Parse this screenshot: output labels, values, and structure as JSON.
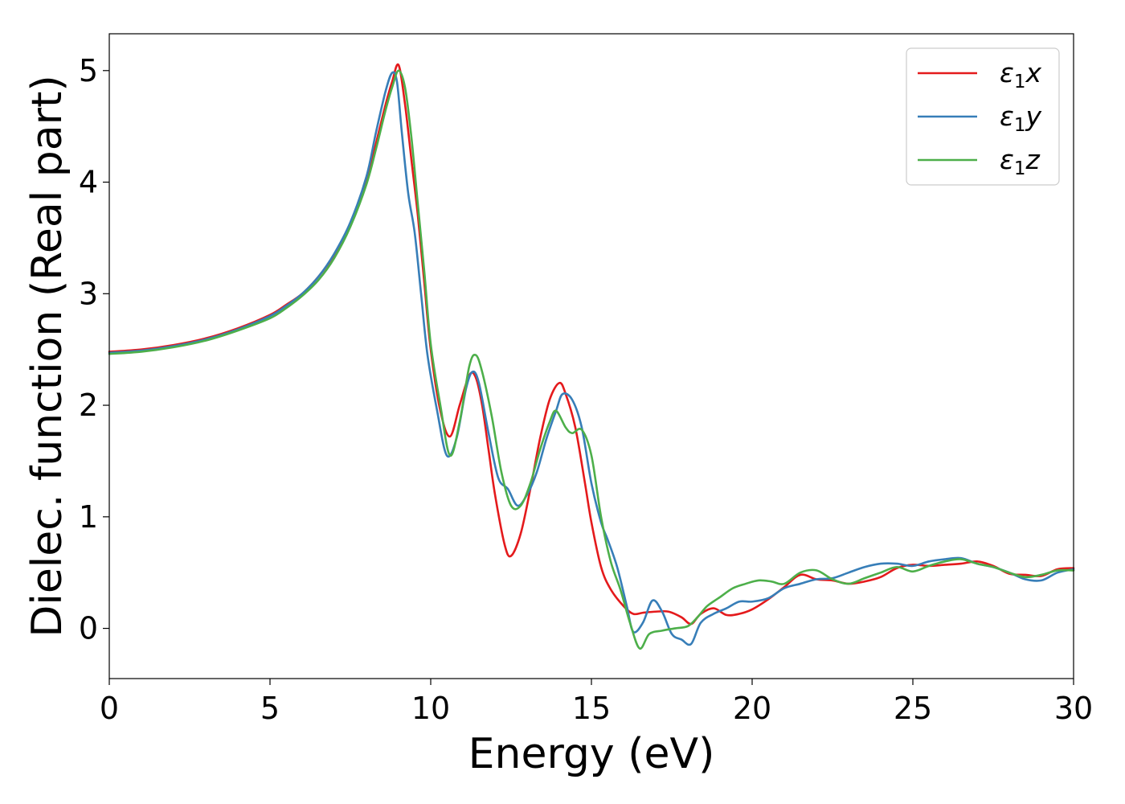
{
  "chart_data": {
    "type": "line",
    "title": "",
    "xlabel": "Energy (eV)",
    "ylabel": "Dielec. function (Real part)",
    "xlim": [
      0,
      30
    ],
    "ylim": [
      -0.45,
      5.33
    ],
    "xticks": [
      0,
      5,
      10,
      15,
      20,
      25,
      30
    ],
    "yticks": [
      0,
      1,
      2,
      3,
      4,
      5
    ],
    "grid": false,
    "legend_position": "top-right",
    "series": [
      {
        "name": "ε1x",
        "label_main": "ε",
        "label_sub": "1",
        "label_var": "x",
        "color": "#e41a1c",
        "x": [
          0,
          1,
          2,
          3,
          4,
          5,
          5.5,
          6,
          6.5,
          7,
          7.5,
          8,
          8.3,
          8.6,
          8.8,
          9.0,
          9.2,
          9.4,
          9.6,
          9.8,
          10.0,
          10.3,
          10.6,
          10.9,
          11.2,
          11.4,
          11.6,
          11.8,
          12.0,
          12.3,
          12.5,
          12.8,
          13.1,
          13.4,
          13.7,
          14.0,
          14.2,
          14.5,
          14.8,
          15.0,
          15.3,
          15.6,
          16.0,
          16.3,
          16.6,
          17.0,
          17.4,
          17.8,
          18.1,
          18.4,
          18.8,
          19.2,
          19.6,
          20.0,
          20.5,
          21.0,
          21.5,
          22.0,
          22.5,
          23.0,
          23.5,
          24.0,
          24.5,
          25.0,
          25.5,
          26.0,
          26.5,
          27.0,
          27.5,
          28.0,
          28.5,
          29.0,
          29.5,
          30.0
        ],
        "values": [
          2.48,
          2.5,
          2.54,
          2.6,
          2.69,
          2.81,
          2.9,
          3.0,
          3.15,
          3.35,
          3.62,
          4.0,
          4.35,
          4.7,
          4.9,
          5.05,
          4.7,
          4.2,
          3.7,
          3.1,
          2.5,
          1.95,
          1.72,
          2.0,
          2.27,
          2.25,
          2.0,
          1.6,
          1.2,
          0.75,
          0.65,
          0.85,
          1.25,
          1.7,
          2.05,
          2.2,
          2.1,
          1.8,
          1.3,
          0.95,
          0.55,
          0.35,
          0.2,
          0.13,
          0.14,
          0.15,
          0.15,
          0.1,
          0.04,
          0.13,
          0.18,
          0.12,
          0.13,
          0.17,
          0.26,
          0.37,
          0.48,
          0.44,
          0.43,
          0.4,
          0.42,
          0.46,
          0.54,
          0.57,
          0.56,
          0.57,
          0.58,
          0.6,
          0.56,
          0.49,
          0.48,
          0.47,
          0.53,
          0.54
        ]
      },
      {
        "name": "ε1y",
        "label_main": "ε",
        "label_sub": "1",
        "label_var": "y",
        "color": "#377eb8",
        "x": [
          0,
          1,
          2,
          3,
          4,
          5,
          5.5,
          6,
          6.5,
          7,
          7.5,
          8,
          8.3,
          8.6,
          8.8,
          8.95,
          9.1,
          9.3,
          9.5,
          9.7,
          9.9,
          10.2,
          10.5,
          10.8,
          11.1,
          11.3,
          11.5,
          11.8,
          12.1,
          12.4,
          12.7,
          13.0,
          13.3,
          13.6,
          13.9,
          14.1,
          14.4,
          14.7,
          15.0,
          15.3,
          15.5,
          15.8,
          16.1,
          16.3,
          16.6,
          16.9,
          17.2,
          17.5,
          17.8,
          18.1,
          18.4,
          18.8,
          19.2,
          19.6,
          20.0,
          20.5,
          21.0,
          21.5,
          22.0,
          22.5,
          23.0,
          23.5,
          24.0,
          24.5,
          25.0,
          25.5,
          26.0,
          26.5,
          27.0,
          27.5,
          28.0,
          28.5,
          29.0,
          29.5,
          30.0
        ],
        "values": [
          2.47,
          2.49,
          2.53,
          2.59,
          2.68,
          2.8,
          2.89,
          3.0,
          3.15,
          3.36,
          3.64,
          4.05,
          4.45,
          4.82,
          4.98,
          4.9,
          4.45,
          3.9,
          3.55,
          3.0,
          2.45,
          1.95,
          1.55,
          1.7,
          2.15,
          2.3,
          2.2,
          1.75,
          1.35,
          1.25,
          1.1,
          1.2,
          1.4,
          1.7,
          1.95,
          2.1,
          2.05,
          1.8,
          1.3,
          0.95,
          0.8,
          0.55,
          0.2,
          -0.03,
          0.05,
          0.25,
          0.15,
          -0.05,
          -0.1,
          -0.14,
          0.05,
          0.13,
          0.18,
          0.24,
          0.24,
          0.27,
          0.36,
          0.4,
          0.44,
          0.45,
          0.5,
          0.55,
          0.58,
          0.58,
          0.56,
          0.6,
          0.62,
          0.63,
          0.58,
          0.55,
          0.5,
          0.44,
          0.43,
          0.5,
          0.53
        ]
      },
      {
        "name": "ε1z",
        "label_main": "ε",
        "label_sub": "1",
        "label_var": "z",
        "color": "#4daf4a",
        "x": [
          0,
          1,
          2,
          3,
          4,
          5,
          5.5,
          6,
          6.5,
          7,
          7.5,
          8,
          8.3,
          8.6,
          8.8,
          9.0,
          9.2,
          9.4,
          9.6,
          9.8,
          10.0,
          10.3,
          10.6,
          10.9,
          11.2,
          11.4,
          11.6,
          11.9,
          12.2,
          12.5,
          12.8,
          13.1,
          13.4,
          13.7,
          13.9,
          14.2,
          14.4,
          14.7,
          15.0,
          15.3,
          15.6,
          15.9,
          16.2,
          16.5,
          16.8,
          17.2,
          17.6,
          18.0,
          18.3,
          18.6,
          19.0,
          19.4,
          19.8,
          20.2,
          20.6,
          21.0,
          21.5,
          22.0,
          22.5,
          23.0,
          23.5,
          24.0,
          24.5,
          25.0,
          25.5,
          26.0,
          26.5,
          27.0,
          27.5,
          28.0,
          28.5,
          29.0,
          29.5,
          30.0
        ],
        "values": [
          2.46,
          2.48,
          2.52,
          2.58,
          2.67,
          2.78,
          2.87,
          2.98,
          3.12,
          3.32,
          3.6,
          3.98,
          4.3,
          4.65,
          4.85,
          5.0,
          4.85,
          4.4,
          3.8,
          3.2,
          2.55,
          2.0,
          1.55,
          1.85,
          2.35,
          2.45,
          2.3,
          1.9,
          1.4,
          1.1,
          1.1,
          1.3,
          1.6,
          1.85,
          1.95,
          1.8,
          1.75,
          1.78,
          1.55,
          1.0,
          0.6,
          0.35,
          0.05,
          -0.18,
          -0.05,
          -0.02,
          0.0,
          0.02,
          0.1,
          0.2,
          0.28,
          0.36,
          0.4,
          0.43,
          0.42,
          0.4,
          0.5,
          0.52,
          0.44,
          0.4,
          0.45,
          0.5,
          0.55,
          0.51,
          0.56,
          0.6,
          0.62,
          0.58,
          0.55,
          0.5,
          0.46,
          0.48,
          0.52,
          0.52
        ]
      }
    ]
  }
}
